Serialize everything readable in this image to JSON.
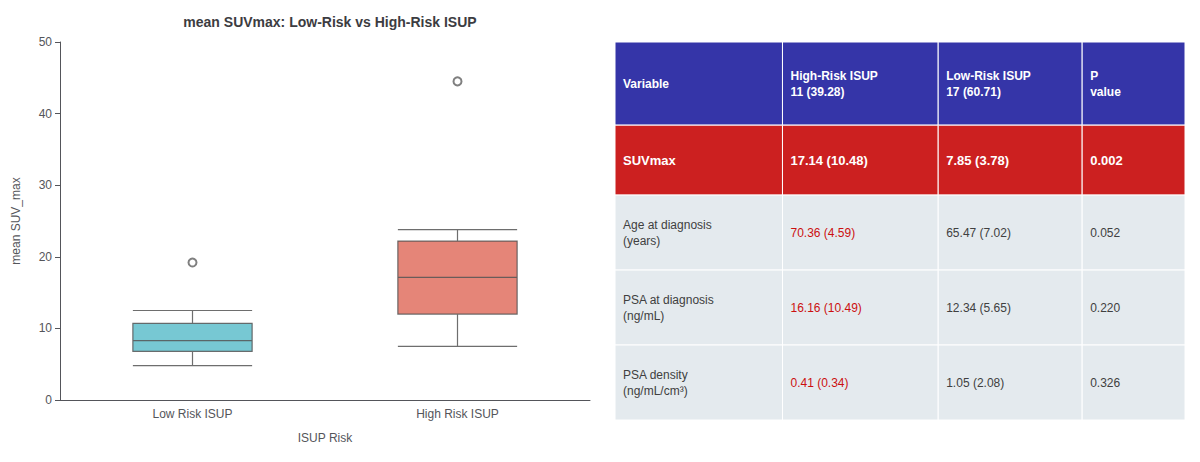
{
  "chart_data": {
    "type": "box",
    "title": "mean SUVmax: Low-Risk vs High-Risk ISUP",
    "xlabel": "ISUP Risk",
    "ylabel": "mean SUV_max",
    "categories": [
      "Low Risk ISUP",
      "High Risk ISUP"
    ],
    "boxes": [
      {
        "whisker_low": 4.8,
        "q1": 6.8,
        "median": 8.3,
        "q3": 10.7,
        "whisker_high": 12.5,
        "outliers": [
          19.2
        ],
        "color": "#5fbecb"
      },
      {
        "whisker_low": 7.5,
        "q1": 12.0,
        "median": 17.14,
        "q3": 22.2,
        "whisker_high": 23.8,
        "outliers": [
          44.5
        ],
        "color": "#e07060"
      }
    ],
    "ylim": [
      0,
      50
    ],
    "yticks": [
      0,
      10,
      20,
      30,
      40,
      50
    ],
    "grid": false,
    "table": {
      "header_color": "#3535a8",
      "value_color": "#cc1010",
      "columns": [
        "Variable",
        "High-Risk ISUP\n11 (39.28)",
        "Low-Risk ISUP\n17 (60.71)",
        "P\nvalue"
      ],
      "rows": [
        {
          "cells": [
            "SUVmax",
            "17.14 (10.48)",
            "7.85 (3.78)",
            "0.002"
          ],
          "color": "#cc2020"
        },
        {
          "cells": [
            "Age at diagnosis\n(years)",
            "70.36 (4.59)",
            "65.47 (7.02)",
            "0.052"
          ]
        },
        {
          "cells": [
            "PSA at diagnosis\n(ng/mL)",
            "16.16 (10.49)",
            "12.34 (5.65)",
            "0.220"
          ]
        },
        {
          "cells": [
            "PSA density\n(ng/mL/cm³)",
            "0.41 (0.34)",
            "1.05 (2.08)",
            "0.326"
          ]
        }
      ]
    }
  }
}
